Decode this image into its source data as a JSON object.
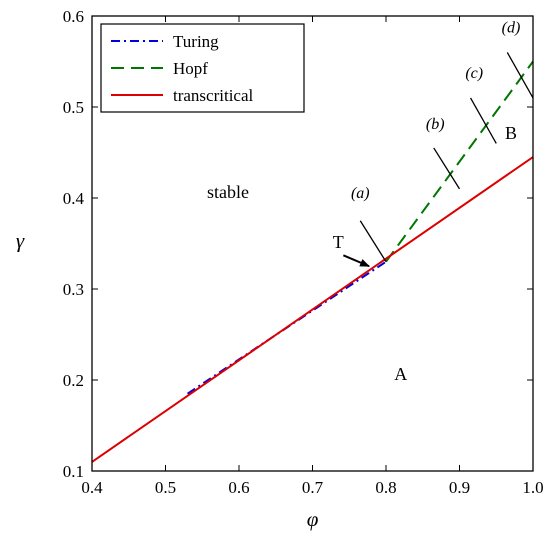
{
  "chart_data": {
    "type": "line",
    "title": "",
    "xlabel": "φ",
    "ylabel": "γ",
    "xlim": [
      0.4,
      1.0
    ],
    "ylim": [
      0.1,
      0.6
    ],
    "xticks": [
      0.4,
      0.5,
      0.6,
      0.7,
      0.8,
      0.9,
      1.0
    ],
    "xtick_labels": [
      "0.4",
      "0.5",
      "0.6",
      "0.7",
      "0.8",
      "0.9",
      "1.0"
    ],
    "yticks": [
      0.1,
      0.2,
      0.3,
      0.4,
      0.5,
      0.6
    ],
    "ytick_labels": [
      "0.1",
      "0.2",
      "0.3",
      "0.4",
      "0.5",
      "0.6"
    ],
    "grid": false,
    "legend_position": "top-left",
    "series": [
      {
        "name": "Turing",
        "style": "dash-dot",
        "color": "#0000dd",
        "x": [
          0.53,
          0.8
        ],
        "y": [
          0.185,
          0.33
        ]
      },
      {
        "name": "Hopf",
        "style": "dashed",
        "color": "#007700",
        "x": [
          0.8,
          1.0
        ],
        "y": [
          0.33,
          0.55
        ]
      },
      {
        "name": "transcritical",
        "style": "solid",
        "color": "#dd0000",
        "x": [
          0.4,
          1.0
        ],
        "y": [
          0.11,
          0.445
        ]
      }
    ],
    "cut_segments": [
      {
        "label": "(a)",
        "x": [
          0.765,
          0.8
        ],
        "y": [
          0.375,
          0.33
        ]
      },
      {
        "label": "(b)",
        "x": [
          0.865,
          0.9
        ],
        "y": [
          0.455,
          0.41
        ]
      },
      {
        "label": "(c)",
        "x": [
          0.915,
          0.95
        ],
        "y": [
          0.51,
          0.46
        ]
      },
      {
        "label": "(d)",
        "x": [
          0.965,
          1.0
        ],
        "y": [
          0.56,
          0.51
        ]
      }
    ],
    "cut_labels": [
      {
        "text": "(a)",
        "x": 0.765,
        "y": 0.4
      },
      {
        "text": "(b)",
        "x": 0.867,
        "y": 0.476
      },
      {
        "text": "(c)",
        "x": 0.92,
        "y": 0.532
      },
      {
        "text": "(d)",
        "x": 0.97,
        "y": 0.582
      }
    ],
    "annotations": [
      {
        "text": "stable",
        "x": 0.585,
        "y": 0.4
      },
      {
        "text": "A",
        "x": 0.82,
        "y": 0.2
      },
      {
        "text": "B",
        "x": 0.97,
        "y": 0.465
      },
      {
        "text": "T",
        "x": 0.735,
        "y": 0.345
      }
    ],
    "arrow": {
      "from": [
        0.742,
        0.337
      ],
      "to": [
        0.777,
        0.325
      ]
    }
  }
}
